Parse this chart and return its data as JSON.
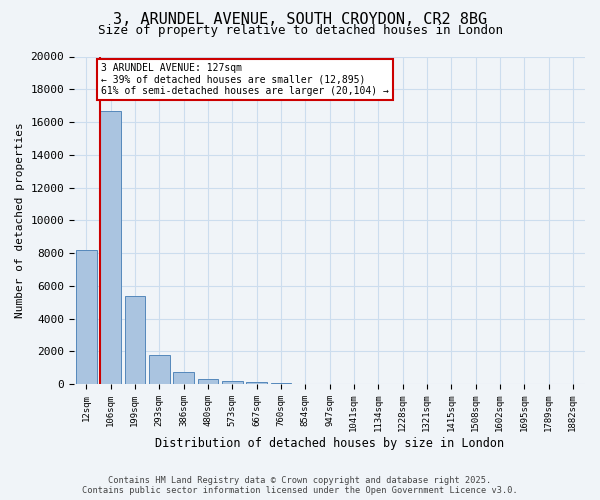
{
  "title_line1": "3, ARUNDEL AVENUE, SOUTH CROYDON, CR2 8BG",
  "title_line2": "Size of property relative to detached houses in London",
  "xlabel": "Distribution of detached houses by size in London",
  "ylabel": "Number of detached properties",
  "categories": [
    "12sqm",
    "106sqm",
    "199sqm",
    "293sqm",
    "386sqm",
    "480sqm",
    "573sqm",
    "667sqm",
    "760sqm",
    "854sqm",
    "947sqm",
    "1041sqm",
    "1134sqm",
    "1228sqm",
    "1321sqm",
    "1415sqm",
    "1508sqm",
    "1602sqm",
    "1695sqm",
    "1789sqm",
    "1882sqm"
  ],
  "values": [
    8200,
    16700,
    5400,
    1800,
    750,
    300,
    200,
    150,
    50,
    0,
    0,
    0,
    0,
    0,
    0,
    0,
    0,
    0,
    0,
    0,
    0
  ],
  "bar_color": "#aac4e0",
  "bar_edge_color": "#5588bb",
  "vline_x": 0.575,
  "annotation_text": "3 ARUNDEL AVENUE: 127sqm\n← 39% of detached houses are smaller (12,895)\n61% of semi-detached houses are larger (20,104) →",
  "annotation_box_color": "#ffffff",
  "annotation_box_edge": "#cc0000",
  "vline_color": "#cc0000",
  "ylim": [
    0,
    20000
  ],
  "yticks": [
    0,
    2000,
    4000,
    6000,
    8000,
    10000,
    12000,
    14000,
    16000,
    18000,
    20000
  ],
  "grid_color": "#ccddee",
  "footer_text": "Contains HM Land Registry data © Crown copyright and database right 2025.\nContains public sector information licensed under the Open Government Licence v3.0.",
  "bg_color": "#f0f4f8"
}
